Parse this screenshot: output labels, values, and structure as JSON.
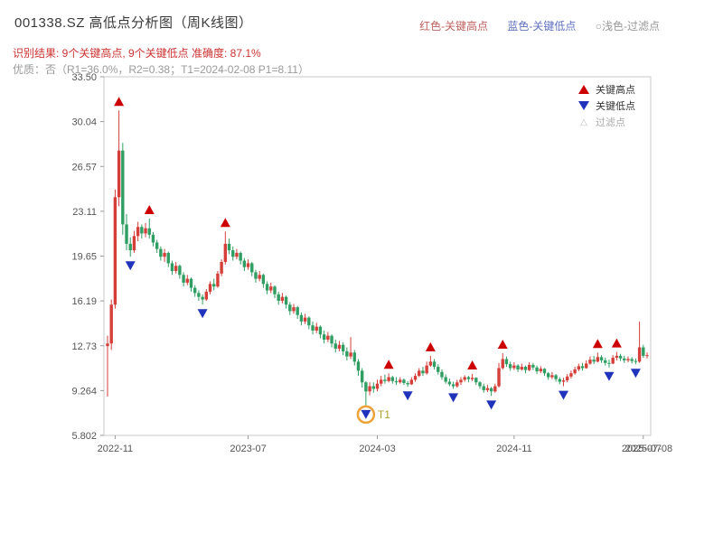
{
  "header": {
    "title": "001338.SZ 高低点分析图（周K线图）",
    "legend_top": [
      {
        "label": "红色-关键高点",
        "color": "#c06060"
      },
      {
        "label": "蓝色-关键低点",
        "color": "#6070c0"
      },
      {
        "label": "○浅色-过滤点",
        "color": "#999999"
      }
    ],
    "result_line": "识别结果: 9个关键高点, 9个关键低点  准确度: 87.1%",
    "result_color": "#cc3333",
    "quality_line": "优质：否（R1=36.0%，R2=0.38；T1=2024-02-08 P1=8.11）"
  },
  "chart_data": {
    "type": "candlestick",
    "title": "001338.SZ 高低点分析图（周K线图）",
    "interval": "weekly",
    "ylim": [
      5.802,
      33.5
    ],
    "y_ticks": [
      "33.50",
      "30.04",
      "26.57",
      "23.11",
      "19.65",
      "16.19",
      "12.73",
      "9.264",
      "5.802"
    ],
    "x_ticks": [
      {
        "label": "2022-11",
        "index": 2
      },
      {
        "label": "2023-07",
        "index": 37
      },
      {
        "label": "2024-03",
        "index": 71
      },
      {
        "label": "2024-11",
        "index": 107
      },
      {
        "label": "2025-07",
        "index": 141
      }
    ],
    "x_end_label": {
      "label": "2025-07-08",
      "index": 142
    },
    "colors": {
      "up": "#d43f3a",
      "down": "#2f9e62",
      "key_high": "#cc0000",
      "key_low": "#2233bb",
      "t1_circle": "#eda338",
      "t1_label": "#b0a030",
      "axis": "#c9c9c9",
      "tick_text": "#555555"
    },
    "legend": [
      {
        "symbol": "triangle-up",
        "label": "关键高点",
        "color": "#cc0000"
      },
      {
        "symbol": "triangle-down",
        "label": "关键低点",
        "color": "#2233bb"
      },
      {
        "symbol": "triangle-hollow",
        "label": "过滤点",
        "color": "#bbbbbb"
      }
    ],
    "first_open": 12.7,
    "highs": [
      13.5,
      16.3,
      24.8,
      30.9,
      28.4,
      22.9,
      21.1,
      21.6,
      22.3,
      22.1,
      22.2,
      22.55,
      21.5,
      20.9,
      20.4,
      20.2,
      20.0,
      19.3,
      19.2,
      19.0,
      18.4,
      18.2,
      18.0,
      17.4,
      17.0,
      16.7,
      17.1,
      17.7,
      17.9,
      18.5,
      19.4,
      21.55,
      21.0,
      20.4,
      20.2,
      20.0,
      19.5,
      19.4,
      19.2,
      18.6,
      18.5,
      18.3,
      17.7,
      17.6,
      17.4,
      16.9,
      16.8,
      16.6,
      16.1,
      15.95,
      15.8,
      15.3,
      15.2,
      15.0,
      14.6,
      14.5,
      14.3,
      13.9,
      13.8,
      13.6,
      13.2,
      13.1,
      13.0,
      12.6,
      13.4,
      12.4,
      11.7,
      11.0,
      10.0,
      9.9,
      9.9,
      10.1,
      10.4,
      10.5,
      10.6,
      10.4,
      10.3,
      10.3,
      10.2,
      10.0,
      10.3,
      10.6,
      11.0,
      11.1,
      11.5,
      11.95,
      11.7,
      11.3,
      10.9,
      10.5,
      10.2,
      9.95,
      10.1,
      10.3,
      10.45,
      10.4,
      10.55,
      10.3,
      10.0,
      9.8,
      9.7,
      9.55,
      9.8,
      11.4,
      12.15,
      11.9,
      11.5,
      11.45,
      11.3,
      11.35,
      11.2,
      11.45,
      11.4,
      11.2,
      11.15,
      11.0,
      10.7,
      10.7,
      10.55,
      10.3,
      10.25,
      10.55,
      10.8,
      11.1,
      11.35,
      11.4,
      11.6,
      11.9,
      11.95,
      12.2,
      12.0,
      11.8,
      11.65,
      12.0,
      12.25,
      12.1,
      11.95,
      11.9,
      11.85,
      11.75,
      14.6,
      12.8,
      12.2
    ],
    "lows": [
      8.8,
      12.4,
      15.6,
      23.5,
      21.3,
      20.1,
      19.6,
      19.9,
      20.8,
      21.0,
      21.1,
      21.0,
      20.4,
      19.9,
      19.3,
      19.2,
      18.8,
      18.2,
      18.3,
      17.9,
      17.3,
      17.4,
      16.9,
      16.5,
      16.2,
      15.9,
      16.2,
      16.7,
      17.0,
      17.2,
      18.1,
      19.0,
      19.8,
      19.3,
      19.4,
      19.0,
      18.5,
      18.6,
      18.1,
      17.6,
      17.7,
      17.2,
      16.7,
      16.8,
      16.4,
      15.9,
      16.0,
      15.6,
      15.1,
      15.2,
      14.8,
      14.3,
      14.4,
      14.0,
      13.6,
      13.7,
      13.3,
      12.9,
      13.0,
      12.6,
      12.2,
      12.3,
      12.0,
      11.6,
      11.7,
      11.2,
      10.4,
      9.5,
      8.11,
      8.9,
      9.1,
      9.2,
      9.6,
      9.8,
      9.9,
      9.8,
      9.7,
      9.8,
      9.7,
      9.55,
      9.7,
      9.95,
      10.3,
      10.4,
      10.5,
      11.1,
      10.9,
      10.5,
      10.1,
      9.8,
      9.6,
      9.4,
      9.5,
      9.7,
      9.95,
      9.9,
      10.0,
      9.7,
      9.4,
      9.1,
      9.15,
      8.85,
      9.1,
      9.5,
      10.9,
      11.1,
      10.8,
      10.85,
      10.7,
      10.8,
      10.6,
      10.75,
      10.85,
      10.55,
      10.6,
      10.4,
      10.1,
      10.15,
      9.95,
      9.75,
      9.6,
      9.9,
      10.2,
      10.5,
      10.75,
      10.8,
      10.95,
      11.25,
      11.3,
      11.45,
      11.4,
      11.2,
      11.05,
      11.3,
      11.6,
      11.55,
      11.4,
      11.45,
      11.35,
      11.3,
      11.4,
      11.8,
      11.75
    ],
    "closes": [
      12.9,
      15.9,
      24.2,
      27.8,
      22.1,
      20.6,
      20.1,
      21.2,
      21.9,
      21.4,
      21.8,
      21.3,
      20.7,
      20.2,
      19.6,
      19.9,
      19.1,
      18.5,
      18.9,
      18.2,
      17.6,
      17.9,
      17.2,
      16.8,
      16.5,
      16.3,
      16.9,
      17.5,
      17.3,
      18.3,
      19.2,
      20.6,
      20.1,
      19.6,
      19.9,
      19.3,
      18.8,
      19.1,
      18.4,
      17.9,
      18.2,
      17.5,
      17.0,
      17.3,
      16.7,
      16.2,
      16.5,
      15.9,
      15.4,
      15.7,
      15.1,
      14.6,
      14.9,
      14.3,
      13.9,
      14.2,
      13.6,
      13.2,
      13.5,
      12.9,
      12.5,
      12.8,
      12.3,
      11.9,
      12.2,
      11.5,
      10.8,
      9.9,
      9.2,
      9.6,
      9.4,
      9.8,
      10.1,
      10.0,
      10.3,
      10.0,
      9.9,
      10.1,
      9.85,
      9.75,
      10.1,
      10.4,
      10.8,
      10.6,
      11.2,
      11.5,
      11.1,
      10.7,
      10.3,
      9.95,
      9.75,
      9.6,
      9.9,
      10.1,
      10.3,
      10.15,
      10.25,
      9.9,
      9.6,
      9.3,
      9.45,
      9.2,
      9.6,
      11.0,
      11.7,
      11.3,
      11.0,
      11.2,
      10.9,
      11.1,
      10.85,
      11.25,
      11.05,
      10.75,
      10.95,
      10.6,
      10.3,
      10.45,
      10.15,
      9.95,
      10.05,
      10.35,
      10.6,
      10.9,
      11.15,
      11.0,
      11.35,
      11.65,
      11.5,
      11.85,
      11.6,
      11.4,
      11.35,
      11.8,
      11.95,
      11.75,
      11.6,
      11.7,
      11.55,
      11.5,
      12.6,
      11.95,
      12.0
    ],
    "key_highs": [
      3,
      11,
      31,
      74,
      85,
      96,
      104,
      129,
      134
    ],
    "key_lows": [
      6,
      25,
      68,
      79,
      91,
      101,
      120,
      132,
      139
    ],
    "filtered_points": [],
    "t1": {
      "index": 68,
      "label": "T1",
      "price": 8.11,
      "date": "2024-02-08"
    }
  }
}
